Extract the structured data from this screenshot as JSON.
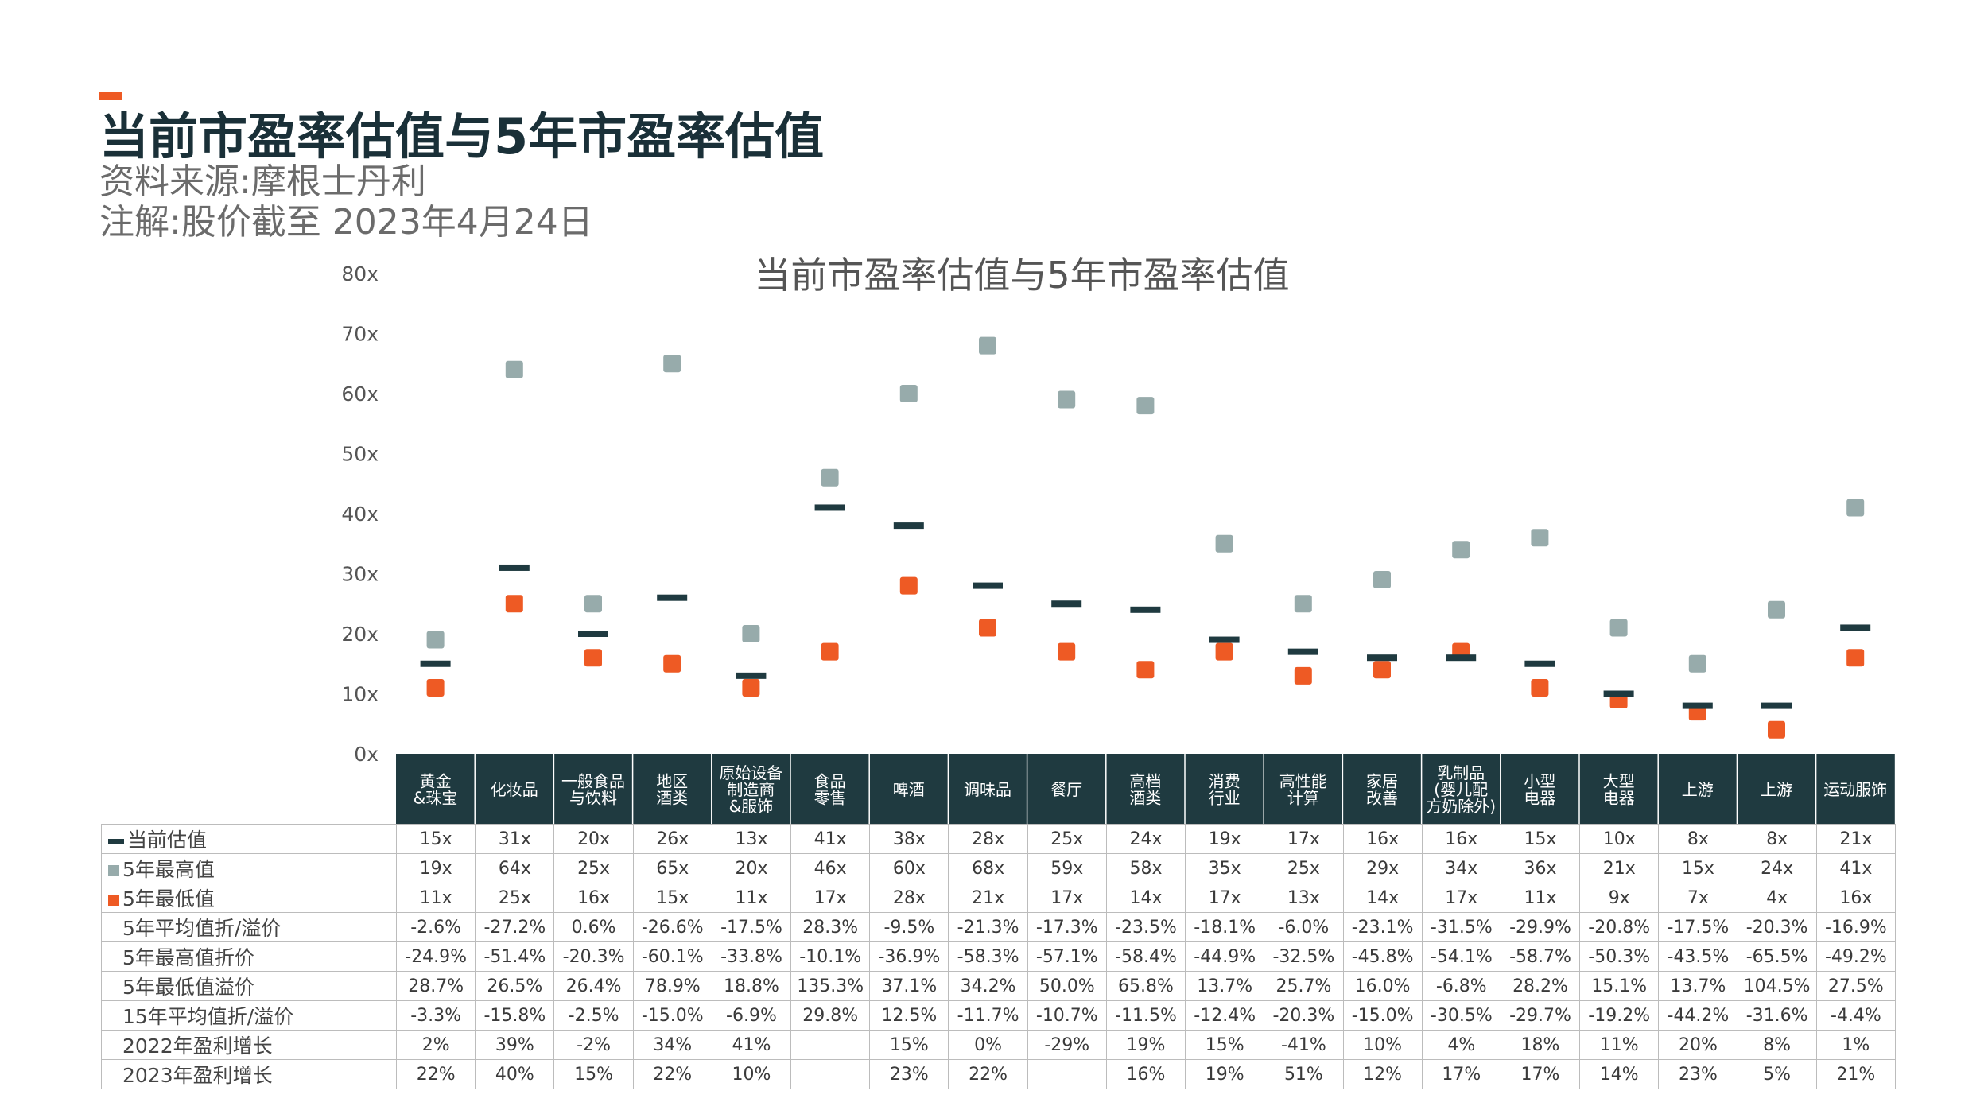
{
  "page": {
    "title": "当前市盈率估值与5年市盈率估值",
    "source": "资料来源:摩根士丹利",
    "note": "注解:股价截至 2023年4月24日"
  },
  "colors": {
    "current": "#1f3a40",
    "high": "#97abab",
    "low": "#ee5a24",
    "header_bg": "#1f3a40",
    "accent": "#ee5a24"
  },
  "chart_data": {
    "type": "scatter",
    "title": "当前市盈率估值与5年市盈率估值",
    "ylim": [
      0,
      80
    ],
    "y_ticks": [
      "0x",
      "10x",
      "20x",
      "30x",
      "40x",
      "50x",
      "60x",
      "70x",
      "80x"
    ],
    "categories": [
      [
        "黄金",
        "&珠宝"
      ],
      [
        "化妆品"
      ],
      [
        "一般食品",
        "与饮料"
      ],
      [
        "地区",
        "酒类"
      ],
      [
        "原始设备",
        "制造商",
        "&服饰"
      ],
      [
        "食品",
        "零售"
      ],
      [
        "啤酒"
      ],
      [
        "调味品"
      ],
      [
        "餐厅"
      ],
      [
        "高档",
        "酒类"
      ],
      [
        "消费",
        "行业"
      ],
      [
        "高性能",
        "计算"
      ],
      [
        "家居",
        "改善"
      ],
      [
        "乳制品",
        "(婴儿配",
        "方奶除外)"
      ],
      [
        "小型",
        "电器"
      ],
      [
        "大型",
        "电器"
      ],
      [
        "上游"
      ],
      [
        "上游"
      ],
      [
        "运动服饰"
      ]
    ],
    "series": [
      {
        "name": "当前估值",
        "values": [
          15,
          31,
          20,
          26,
          13,
          41,
          38,
          28,
          25,
          24,
          19,
          17,
          16,
          16,
          15,
          10,
          8,
          8,
          21
        ]
      },
      {
        "name": "5年最高值",
        "values": [
          19,
          64,
          25,
          65,
          20,
          46,
          60,
          68,
          59,
          58,
          35,
          25,
          29,
          34,
          36,
          21,
          15,
          24,
          41
        ]
      },
      {
        "name": "5年最低值",
        "values": [
          11,
          25,
          16,
          15,
          11,
          17,
          28,
          21,
          17,
          14,
          17,
          13,
          14,
          17,
          11,
          9,
          7,
          4,
          16
        ]
      }
    ]
  },
  "table": {
    "rows": [
      {
        "label": "当前估值",
        "marker": "dash",
        "cells": [
          "15x",
          "31x",
          "20x",
          "26x",
          "13x",
          "41x",
          "38x",
          "28x",
          "25x",
          "24x",
          "19x",
          "17x",
          "16x",
          "16x",
          "15x",
          "10x",
          "8x",
          "8x",
          "21x"
        ]
      },
      {
        "label": "5年最高值",
        "marker": "gray",
        "cells": [
          "19x",
          "64x",
          "25x",
          "65x",
          "20x",
          "46x",
          "60x",
          "68x",
          "59x",
          "58x",
          "35x",
          "25x",
          "29x",
          "34x",
          "36x",
          "21x",
          "15x",
          "24x",
          "41x"
        ]
      },
      {
        "label": "5年最低值",
        "marker": "orange",
        "cells": [
          "11x",
          "25x",
          "16x",
          "15x",
          "11x",
          "17x",
          "28x",
          "21x",
          "17x",
          "14x",
          "17x",
          "13x",
          "14x",
          "17x",
          "11x",
          "9x",
          "7x",
          "4x",
          "16x"
        ]
      },
      {
        "label": "5年平均值折/溢价",
        "marker": "",
        "cells": [
          "-2.6%",
          "-27.2%",
          "0.6%",
          "-26.6%",
          "-17.5%",
          "28.3%",
          "-9.5%",
          "-21.3%",
          "-17.3%",
          "-23.5%",
          "-18.1%",
          "-6.0%",
          "-23.1%",
          "-31.5%",
          "-29.9%",
          "-20.8%",
          "-17.5%",
          "-20.3%",
          "-16.9%"
        ]
      },
      {
        "label": "5年最高值折价",
        "marker": "",
        "cells": [
          "-24.9%",
          "-51.4%",
          "-20.3%",
          "-60.1%",
          "-33.8%",
          "-10.1%",
          "-36.9%",
          "-58.3%",
          "-57.1%",
          "-58.4%",
          "-44.9%",
          "-32.5%",
          "-45.8%",
          "-54.1%",
          "-58.7%",
          "-50.3%",
          "-43.5%",
          "-65.5%",
          "-49.2%"
        ]
      },
      {
        "label": "5年最低值溢价",
        "marker": "",
        "cells": [
          "28.7%",
          "26.5%",
          "26.4%",
          "78.9%",
          "18.8%",
          "135.3%",
          "37.1%",
          "34.2%",
          "50.0%",
          "65.8%",
          "13.7%",
          "25.7%",
          "16.0%",
          "-6.8%",
          "28.2%",
          "15.1%",
          "13.7%",
          "104.5%",
          "27.5%"
        ]
      },
      {
        "label": "15年平均值折/溢价",
        "marker": "",
        "cells": [
          "-3.3%",
          "-15.8%",
          "-2.5%",
          "-15.0%",
          "-6.9%",
          "29.8%",
          "12.5%",
          "-11.7%",
          "-10.7%",
          "-11.5%",
          "-12.4%",
          "-20.3%",
          "-15.0%",
          "-30.5%",
          "-29.7%",
          "-19.2%",
          "-44.2%",
          "-31.6%",
          "-4.4%"
        ]
      },
      {
        "label": "2022年盈利增长",
        "marker": "",
        "cells": [
          "2%",
          "39%",
          "-2%",
          "34%",
          "41%",
          "",
          "15%",
          "0%",
          "-29%",
          "19%",
          "15%",
          "-41%",
          "10%",
          "4%",
          "18%",
          "11%",
          "20%",
          "8%",
          "1%"
        ]
      },
      {
        "label": "2023年盈利增长",
        "marker": "",
        "cells": [
          "22%",
          "40%",
          "15%",
          "22%",
          "10%",
          "",
          "23%",
          "22%",
          "",
          "16%",
          "19%",
          "51%",
          "12%",
          "17%",
          "17%",
          "14%",
          "23%",
          "5%",
          "21%"
        ]
      }
    ]
  }
}
